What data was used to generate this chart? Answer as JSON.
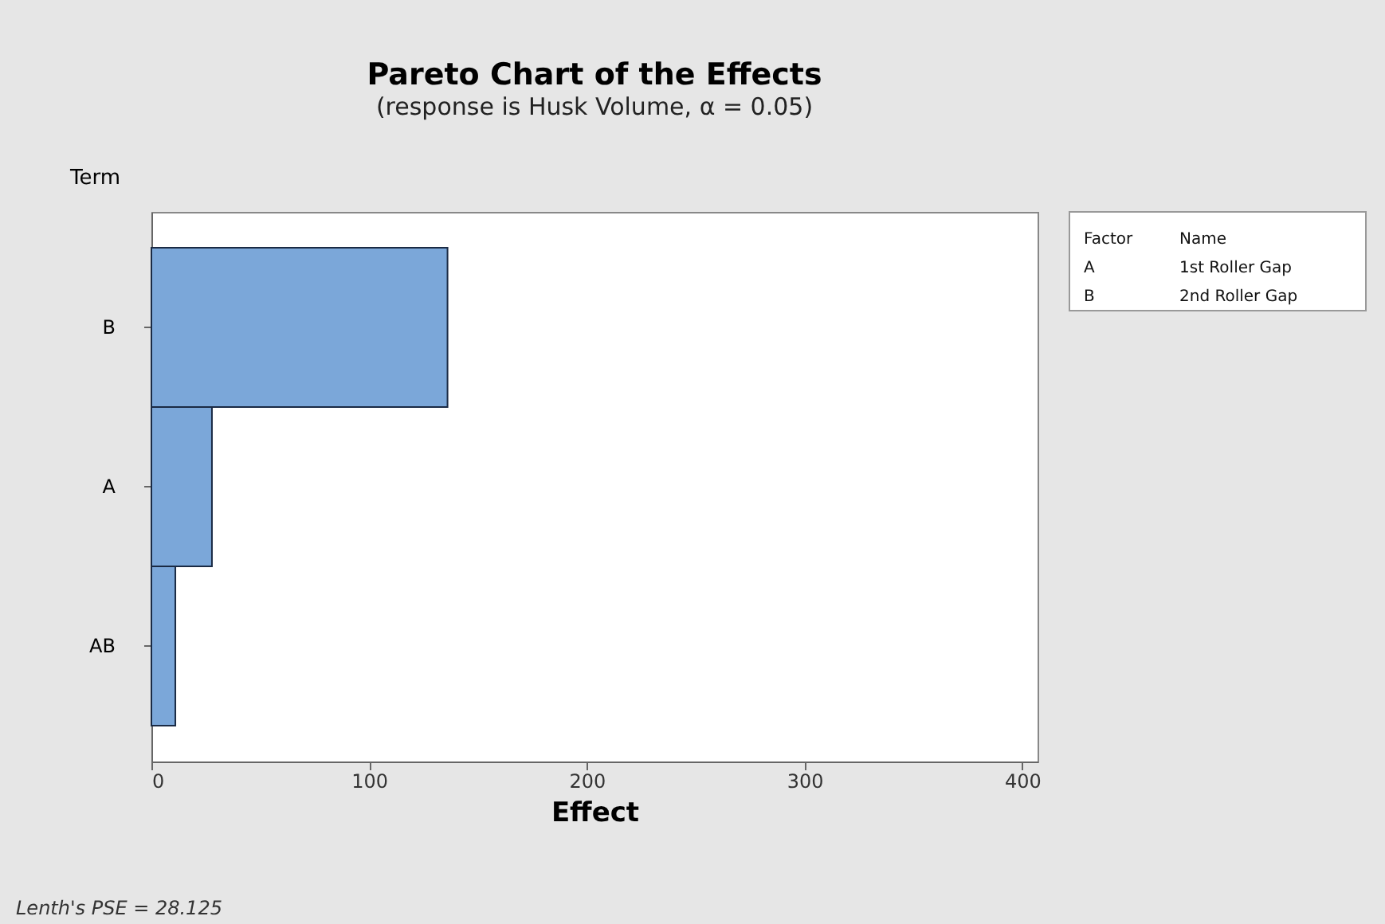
{
  "chart_data": {
    "type": "bar",
    "orientation": "horizontal",
    "title": "Pareto Chart of the Effects",
    "subtitle": "(response is Husk Volume, α = 0.05)",
    "xlabel": "Effect",
    "ylabel": "Term",
    "categories": [
      "B",
      "A",
      "AB"
    ],
    "series": [
      {
        "color": "#7ba7d9",
        "values": [
          136,
          27.8,
          11
        ]
      }
    ],
    "xlim": [
      0,
      407
    ],
    "xticks": [
      0,
      100,
      200,
      300,
      400
    ],
    "grid": false,
    "annotations": [
      "Lenth's PSE = 28.125",
      "Factor",
      "Name",
      "A",
      "1st Roller Gap",
      "B",
      "2nd Roller Gap"
    ]
  }
}
